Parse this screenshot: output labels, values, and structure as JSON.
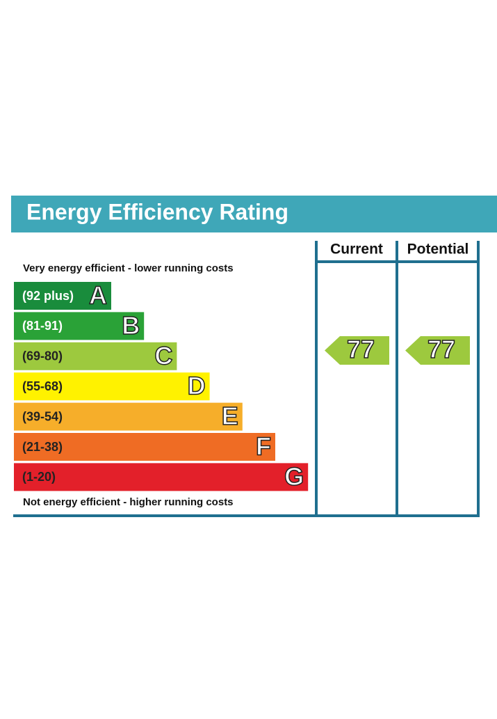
{
  "title": "Energy Efficiency Rating",
  "top_note": "Very energy efficient - lower running costs",
  "bottom_note": "Not energy efficient - higher running costs",
  "columns": [
    "Current",
    "Potential"
  ],
  "bands": [
    {
      "range": "(92 plus)",
      "letter": "A",
      "color": "#198c3c"
    },
    {
      "range": "(81-91)",
      "letter": "B",
      "color": "#2aa237"
    },
    {
      "range": "(69-80)",
      "letter": "C",
      "color": "#9dc93e"
    },
    {
      "range": "(55-68)",
      "letter": "D",
      "color": "#fff200"
    },
    {
      "range": "(39-54)",
      "letter": "E",
      "color": "#f6ae2a"
    },
    {
      "range": "(21-38)",
      "letter": "F",
      "color": "#ef6c24"
    },
    {
      "range": "(1-20)",
      "letter": "G",
      "color": "#e3202a"
    }
  ],
  "ratings": [
    {
      "value": "77",
      "color": "#9dc93e"
    },
    {
      "value": "77",
      "color": "#9dc93e"
    }
  ]
}
